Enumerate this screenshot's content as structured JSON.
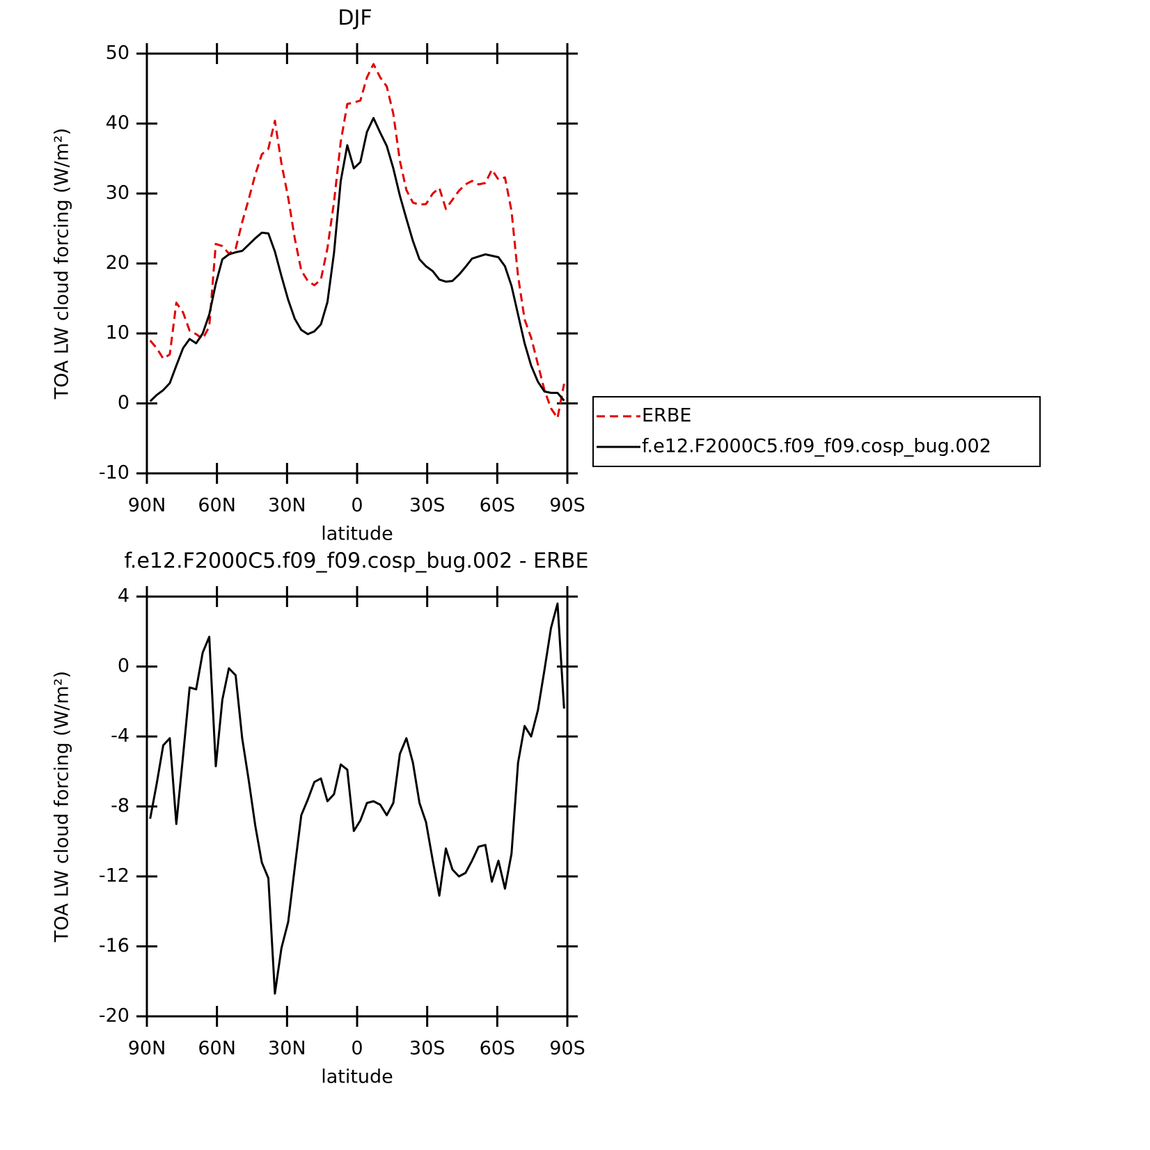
{
  "chart_data": [
    {
      "type": "line",
      "title": "DJF",
      "xlabel": "latitude",
      "ylabel": "TOA LW cloud forcing (W/m²)",
      "x": [
        88.6,
        85.8,
        83.0,
        80.2,
        77.4,
        74.5,
        71.7,
        68.9,
        66.1,
        63.3,
        60.5,
        57.7,
        54.9,
        52.0,
        49.2,
        46.4,
        43.6,
        40.8,
        38.0,
        35.2,
        32.4,
        29.5,
        26.7,
        23.9,
        21.1,
        18.3,
        15.5,
        12.7,
        9.9,
        7.0,
        4.2,
        1.4,
        -1.4,
        -4.2,
        -7.0,
        -9.9,
        -12.7,
        -15.5,
        -18.3,
        -21.1,
        -23.9,
        -26.7,
        -29.5,
        -32.4,
        -35.2,
        -38.0,
        -40.8,
        -43.6,
        -46.4,
        -49.2,
        -52.0,
        -54.9,
        -57.7,
        -60.5,
        -63.3,
        -66.1,
        -68.9,
        -71.7,
        -74.5,
        -77.4,
        -80.2,
        -83.0,
        -85.8,
        -88.6
      ],
      "series": [
        {
          "name": "ERBE",
          "color": "#e00000",
          "dash": true,
          "values": [
            9.0,
            7.9,
            6.4,
            7.0,
            14.4,
            13.0,
            10.4,
            9.9,
            9.2,
            11.0,
            22.8,
            22.5,
            21.4,
            22.1,
            25.9,
            29.2,
            32.7,
            35.6,
            36.4,
            40.4,
            34.3,
            29.4,
            23.6,
            19.0,
            17.5,
            16.9,
            17.7,
            22.2,
            28.8,
            37.4,
            42.8,
            43.0,
            43.3,
            46.6,
            48.5,
            46.6,
            45.3,
            41.4,
            34.7,
            30.5,
            28.7,
            28.4,
            28.5,
            30.0,
            30.8,
            27.8,
            29.1,
            30.4,
            31.3,
            31.8,
            31.3,
            31.5,
            33.4,
            32.0,
            32.3,
            27.5,
            18.2,
            12.0,
            9.4,
            5.6,
            1.9,
            -0.7,
            -2.1,
            2.8
          ]
        },
        {
          "name": "f.e12.F2000C5.f09_f09.cosp_bug.002",
          "color": "#000000",
          "dash": false,
          "values": [
            0.3,
            1.2,
            1.9,
            2.9,
            5.4,
            7.9,
            9.2,
            8.6,
            10.0,
            12.7,
            17.1,
            20.6,
            21.3,
            21.6,
            21.8,
            22.7,
            23.6,
            24.4,
            24.3,
            21.7,
            18.2,
            14.8,
            12.1,
            10.5,
            9.9,
            10.3,
            11.3,
            14.5,
            21.5,
            31.8,
            36.9,
            33.6,
            34.5,
            38.8,
            40.8,
            38.7,
            36.8,
            33.6,
            29.7,
            26.4,
            23.2,
            20.6,
            19.6,
            18.9,
            17.7,
            17.4,
            17.5,
            18.4,
            19.5,
            20.7,
            21.0,
            21.3,
            21.1,
            20.9,
            19.6,
            16.8,
            12.7,
            8.6,
            5.4,
            3.1,
            1.7,
            1.5,
            1.5,
            0.4
          ]
        }
      ],
      "xlim": [
        90,
        -90
      ],
      "xticks": [
        {
          "value": 90,
          "label": "90N"
        },
        {
          "value": 60,
          "label": "60N"
        },
        {
          "value": 30,
          "label": "30N"
        },
        0,
        {
          "value": -30,
          "label": "30S"
        },
        {
          "value": -60,
          "label": "60S"
        },
        {
          "value": -90,
          "label": "90S"
        }
      ],
      "ylim": [
        -10,
        50
      ],
      "yticks": [
        -10,
        0,
        10,
        20,
        30,
        40,
        50
      ],
      "legend": "right"
    },
    {
      "type": "line",
      "title": "f.e12.F2000C5.f09_f09.cosp_bug.002 - ERBE",
      "xlabel": "latitude",
      "ylabel": "TOA LW cloud forcing (W/m²)",
      "x": [
        88.6,
        85.8,
        83.0,
        80.2,
        77.4,
        74.5,
        71.7,
        68.9,
        66.1,
        63.3,
        60.5,
        57.7,
        54.9,
        52.0,
        49.2,
        46.4,
        43.6,
        40.8,
        38.0,
        35.2,
        32.4,
        29.5,
        26.7,
        23.9,
        21.1,
        18.3,
        15.5,
        12.7,
        9.9,
        7.0,
        4.2,
        1.4,
        -1.4,
        -4.2,
        -7.0,
        -9.9,
        -12.7,
        -15.5,
        -18.3,
        -21.1,
        -23.9,
        -26.7,
        -29.5,
        -32.4,
        -35.2,
        -38.0,
        -40.8,
        -43.6,
        -46.4,
        -49.2,
        -52.0,
        -54.9,
        -57.7,
        -60.5,
        -63.3,
        -66.1,
        -68.9,
        -71.7,
        -74.5,
        -77.4,
        -80.2,
        -83.0,
        -85.8,
        -88.6
      ],
      "values": [
        -8.7,
        -6.7,
        -4.5,
        -4.1,
        -9.0,
        -5.1,
        -1.2,
        -1.3,
        0.8,
        1.7,
        -5.7,
        -1.9,
        -0.1,
        -0.5,
        -4.1,
        -6.5,
        -9.1,
        -11.2,
        -12.1,
        -18.7,
        -16.1,
        -14.6,
        -11.5,
        -8.5,
        -7.6,
        -6.6,
        -6.4,
        -7.7,
        -7.3,
        -5.6,
        -5.9,
        -9.4,
        -8.8,
        -7.8,
        -7.7,
        -7.9,
        -8.5,
        -7.8,
        -5.0,
        -4.1,
        -5.5,
        -7.8,
        -8.9,
        -11.1,
        -13.1,
        -10.4,
        -11.6,
        -12.0,
        -11.8,
        -11.1,
        -10.3,
        -10.2,
        -12.3,
        -11.1,
        -12.7,
        -10.7,
        -5.5,
        -3.4,
        -4.0,
        -2.5,
        -0.2,
        2.2,
        3.6,
        -2.4
      ],
      "color": "#000000",
      "xlim": [
        90,
        -90
      ],
      "xticks": [
        {
          "value": 90,
          "label": "90N"
        },
        {
          "value": 60,
          "label": "60N"
        },
        {
          "value": 30,
          "label": "30N"
        },
        0,
        {
          "value": -30,
          "label": "30S"
        },
        {
          "value": -60,
          "label": "60S"
        },
        {
          "value": -90,
          "label": "90S"
        }
      ],
      "ylim": [
        -20,
        4
      ],
      "yticks": [
        -20,
        -16,
        -12,
        -8,
        -4,
        0,
        4
      ]
    }
  ]
}
